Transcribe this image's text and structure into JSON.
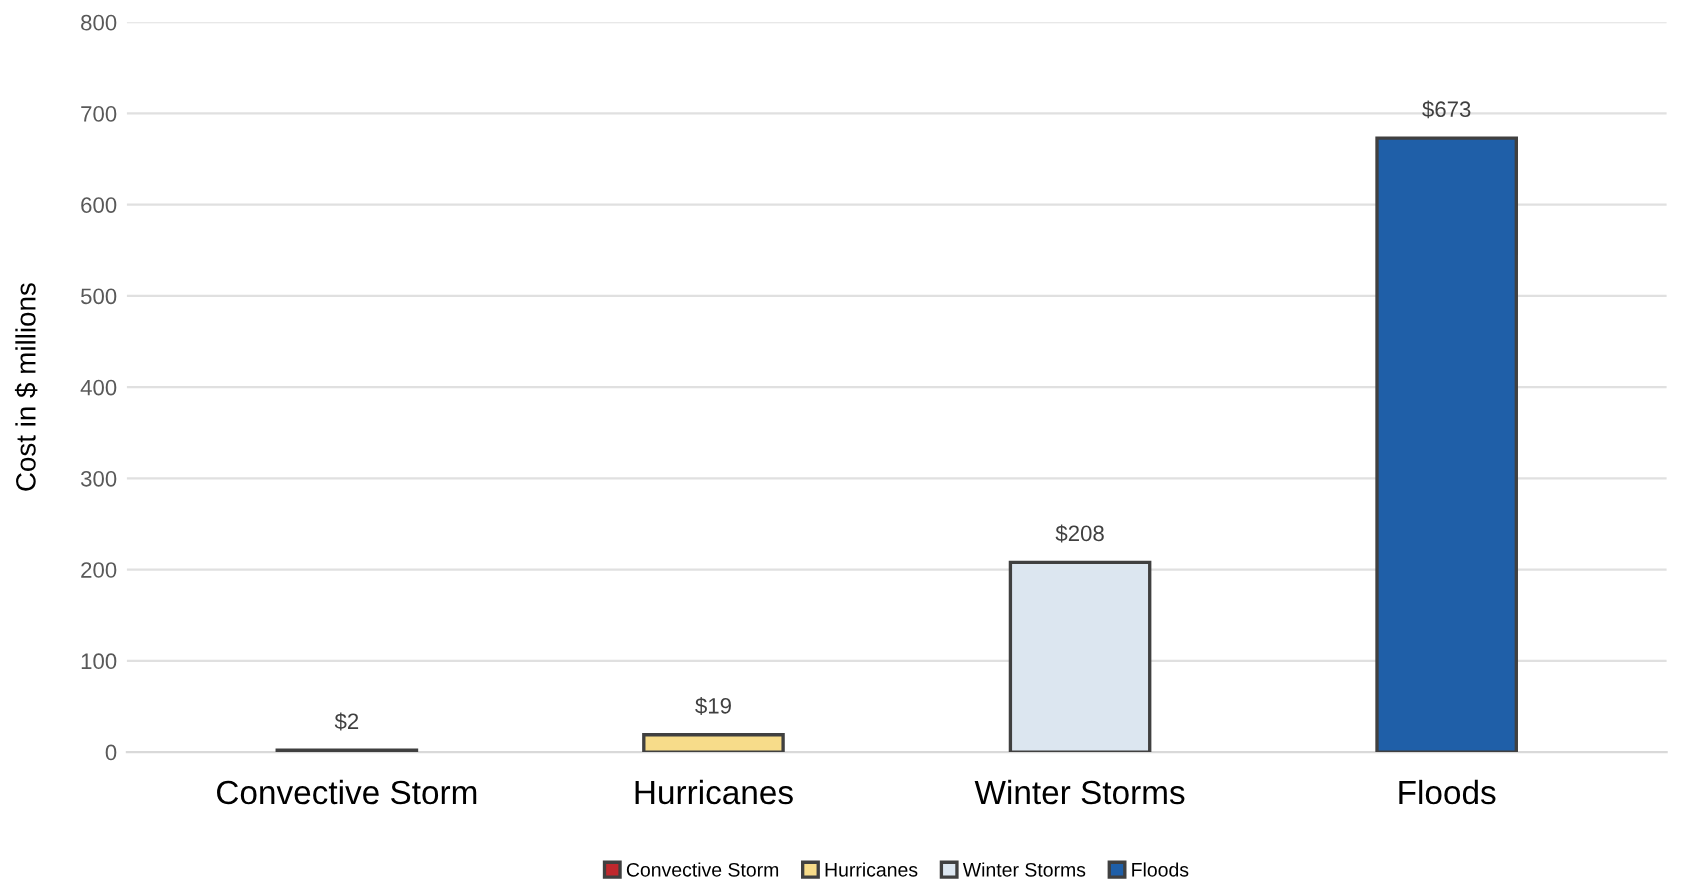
{
  "chart_data": {
    "type": "bar",
    "ylabel": "Cost in $ millions",
    "categories": [
      "Convective Storm",
      "Hurricanes",
      "Winter Storms",
      "Floods"
    ],
    "series": [
      {
        "name": "Convective Storm",
        "color": "#c0282d",
        "values": [
          2,
          null,
          null,
          null
        ],
        "value_labels": [
          "$2",
          null,
          null,
          null
        ]
      },
      {
        "name": "Hurricanes",
        "color": "#f7dc8a",
        "values": [
          null,
          19,
          null,
          null
        ],
        "value_labels": [
          null,
          "$19",
          null,
          null
        ]
      },
      {
        "name": "Winter Storms",
        "color": "#dce6f0",
        "values": [
          null,
          null,
          208,
          null
        ],
        "value_labels": [
          null,
          null,
          "$208",
          null
        ]
      },
      {
        "name": "Floods",
        "color": "#1f5fa8",
        "values": [
          null,
          null,
          null,
          673
        ],
        "value_labels": [
          null,
          null,
          null,
          "$673"
        ]
      }
    ],
    "ylim": [
      0,
      800
    ],
    "yticks": [
      0,
      100,
      200,
      300,
      400,
      500,
      600,
      700,
      800
    ],
    "grid": "y",
    "legend": "bottom"
  }
}
